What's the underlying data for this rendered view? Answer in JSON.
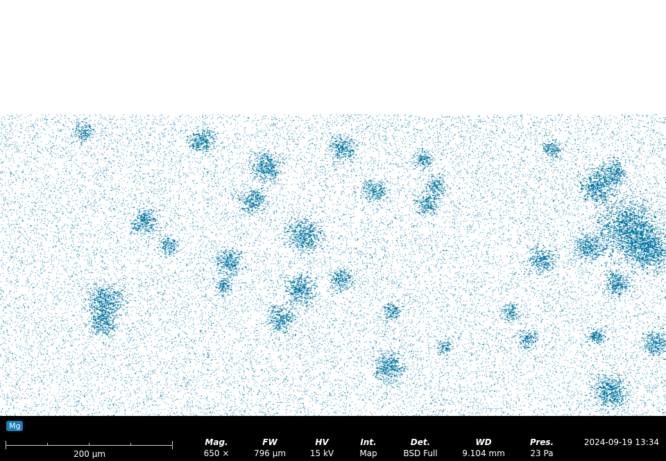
{
  "element_label": "Mg",
  "colors": {
    "map_dots": "#0a7aa4",
    "badge": "#1a7fb8",
    "background": "#ffffff",
    "info_bar": "#000000"
  },
  "scalebar": {
    "label": "200 µm"
  },
  "parameters": [
    {
      "label": "Mag.",
      "value": "650 ×"
    },
    {
      "label": "FW",
      "value": "796 µm"
    },
    {
      "label": "HV",
      "value": "15 kV"
    },
    {
      "label": "Int.",
      "value": "Map"
    },
    {
      "label": "Det.",
      "value": "BSD Full"
    },
    {
      "label": "WD",
      "value": "9.104 mm"
    },
    {
      "label": "Pres.",
      "value": "23 Pa"
    }
  ],
  "timestamp": "2024-09-19 13:34"
}
